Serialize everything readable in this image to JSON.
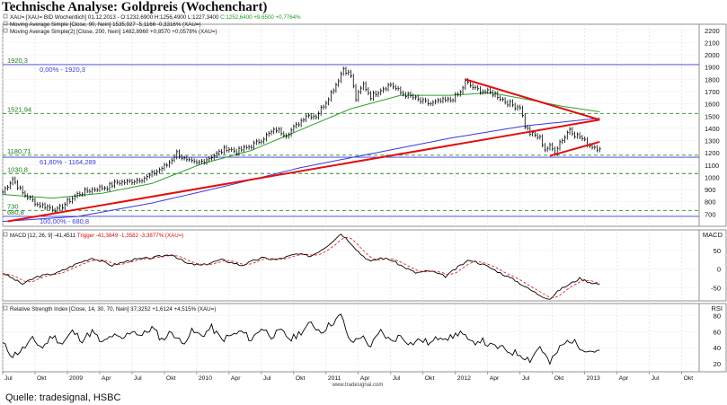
{
  "page": {
    "title": "Technische Analyse: Goldpreis (Wochenchart)",
    "source": "Quelle: tradesignal, HSBC",
    "watermark": "www.tradesignal.com"
  },
  "colors": {
    "price": "#000000",
    "sma90": "#2ea02e",
    "sma200": "#3a3ad8",
    "trend": "#e01010",
    "level_line_blue": "#3a3ad8",
    "level_line_green": "#2a8a2a",
    "signal": "#e01010",
    "legend_green": "#1f9a1f",
    "legend_red": "#d01010"
  },
  "chart_data": [
    {
      "type": "line",
      "panel": "price",
      "ylim": [
        600,
        2250
      ],
      "ticks": [
        "2200",
        "2100",
        "2000",
        "1900",
        "1800",
        "1700",
        "1600",
        "1500",
        "1400",
        "1300",
        "1200",
        "1100",
        "1000",
        "900",
        "800",
        "700"
      ],
      "legend": [
        {
          "label": "XAU= [XAU= BID Wochentlich] 01.12.2013 - O:1232,6900 H:1256,4900 L:1227,3400",
          "extra": "C:1252,6400 +9,6500 +0,7764%",
          "extra_color": "legend_green"
        },
        {
          "label": "Moving Average Simple [Close, 90, Nein] 1535,927 -5,1166 -0,3316% (XAU=)",
          "extra": "",
          "extra_color": ""
        },
        {
          "label": "Moving Average Simple(2) [Close, 200, Nein] 1482,8960 +0,8570 +0,0578% (XAU=)",
          "extra": "",
          "extra_color": ""
        }
      ],
      "levels": [
        {
          "value": 1920.3,
          "label": "1920,3",
          "fib": "0,00% - 1920,3",
          "color": "level_line_blue",
          "dash": false
        },
        {
          "value": 1521.94,
          "label": "1521,94",
          "fib": "",
          "color": "level_line_green",
          "dash": true
        },
        {
          "value": 1180.71,
          "label": "1180,71",
          "fib": "",
          "color": "level_line_green",
          "dash": true
        },
        {
          "value": 1164.289,
          "label": "",
          "fib": "61,80% - 1164,289",
          "color": "level_line_blue",
          "dash": false
        },
        {
          "value": 1030.8,
          "label": "1030,8",
          "fib": "",
          "color": "level_line_green",
          "dash": true
        },
        {
          "value": 730,
          "label": "730",
          "fib": "",
          "color": "level_line_green",
          "dash": true
        },
        {
          "value": 680.8,
          "label": "680,8",
          "fib": "100,00% - 680,8",
          "color": "level_line_blue",
          "dash": false
        }
      ],
      "price_anchors": [
        [
          0,
          880
        ],
        [
          4,
          990
        ],
        [
          8,
          870
        ],
        [
          14,
          780
        ],
        [
          18,
          760
        ],
        [
          22,
          730
        ],
        [
          26,
          800
        ],
        [
          30,
          860
        ],
        [
          34,
          890
        ],
        [
          38,
          910
        ],
        [
          42,
          920
        ],
        [
          46,
          960
        ],
        [
          50,
          960
        ],
        [
          54,
          980
        ],
        [
          58,
          1000
        ],
        [
          62,
          1050
        ],
        [
          66,
          1100
        ],
        [
          70,
          1200
        ],
        [
          74,
          1130
        ],
        [
          78,
          1110
        ],
        [
          82,
          1150
        ],
        [
          86,
          1190
        ],
        [
          90,
          1240
        ],
        [
          94,
          1210
        ],
        [
          98,
          1240
        ],
        [
          102,
          1280
        ],
        [
          106,
          1340
        ],
        [
          110,
          1390
        ],
        [
          114,
          1350
        ],
        [
          118,
          1420
        ],
        [
          122,
          1510
        ],
        [
          126,
          1500
        ],
        [
          130,
          1620
        ],
        [
          134,
          1760
        ],
        [
          137,
          1890
        ],
        [
          140,
          1830
        ],
        [
          142,
          1640
        ],
        [
          145,
          1760
        ],
        [
          148,
          1660
        ],
        [
          152,
          1720
        ],
        [
          156,
          1760
        ],
        [
          160,
          1690
        ],
        [
          164,
          1660
        ],
        [
          168,
          1620
        ],
        [
          172,
          1600
        ],
        [
          176,
          1620
        ],
        [
          180,
          1630
        ],
        [
          184,
          1690
        ],
        [
          186,
          1780
        ],
        [
          190,
          1720
        ],
        [
          194,
          1700
        ],
        [
          198,
          1680
        ],
        [
          202,
          1620
        ],
        [
          206,
          1580
        ],
        [
          208,
          1580
        ],
        [
          210,
          1420
        ],
        [
          212,
          1360
        ],
        [
          216,
          1320
        ],
        [
          218,
          1230
        ],
        [
          220,
          1250
        ],
        [
          222,
          1210
        ],
        [
          224,
          1290
        ],
        [
          226,
          1330
        ],
        [
          228,
          1400
        ],
        [
          230,
          1350
        ],
        [
          232,
          1330
        ],
        [
          236,
          1260
        ],
        [
          238,
          1250
        ],
        [
          240,
          1232
        ]
      ],
      "sma90_anchors": [
        [
          0,
          860
        ],
        [
          20,
          830
        ],
        [
          40,
          870
        ],
        [
          60,
          950
        ],
        [
          80,
          1110
        ],
        [
          100,
          1220
        ],
        [
          120,
          1390
        ],
        [
          140,
          1560
        ],
        [
          160,
          1670
        ],
        [
          180,
          1670
        ],
        [
          196,
          1690
        ],
        [
          210,
          1640
        ],
        [
          225,
          1580
        ],
        [
          240,
          1535
        ]
      ],
      "sma200_anchors": [
        [
          0,
          640
        ],
        [
          30,
          680
        ],
        [
          60,
          790
        ],
        [
          90,
          930
        ],
        [
          120,
          1080
        ],
        [
          150,
          1200
        ],
        [
          180,
          1320
        ],
        [
          210,
          1420
        ],
        [
          240,
          1483
        ]
      ],
      "trendlines": [
        {
          "from": [
            2,
            640
          ],
          "to": [
            240,
            1470
          ]
        },
        {
          "from": [
            186,
            1800
          ],
          "to": [
            240,
            1470
          ]
        },
        {
          "from": [
            220,
            1175
          ],
          "to": [
            240,
            1290
          ]
        }
      ]
    },
    {
      "type": "line",
      "panel": "macd",
      "ylim": [
        -85,
        105
      ],
      "ticks": [
        "50",
        "0",
        "-50"
      ],
      "label": "MACD",
      "legend": [
        {
          "label": "MACD [12, 26, 9] -41,4511",
          "extra": "Trigger -41,3849 -1,3582 -3,3877% (XAU=)",
          "extra_color": "legend_red"
        }
      ],
      "macd_anchors": [
        [
          0,
          -10
        ],
        [
          8,
          -40
        ],
        [
          14,
          -20
        ],
        [
          22,
          -10
        ],
        [
          30,
          15
        ],
        [
          36,
          30
        ],
        [
          44,
          10
        ],
        [
          52,
          25
        ],
        [
          60,
          30
        ],
        [
          68,
          40
        ],
        [
          74,
          15
        ],
        [
          80,
          10
        ],
        [
          88,
          25
        ],
        [
          96,
          10
        ],
        [
          104,
          30
        ],
        [
          110,
          25
        ],
        [
          118,
          40
        ],
        [
          124,
          35
        ],
        [
          130,
          60
        ],
        [
          136,
          95
        ],
        [
          140,
          70
        ],
        [
          144,
          40
        ],
        [
          148,
          20
        ],
        [
          152,
          30
        ],
        [
          156,
          25
        ],
        [
          160,
          10
        ],
        [
          166,
          -10
        ],
        [
          172,
          -5
        ],
        [
          178,
          -20
        ],
        [
          184,
          10
        ],
        [
          188,
          25
        ],
        [
          194,
          10
        ],
        [
          200,
          -10
        ],
        [
          206,
          -30
        ],
        [
          212,
          -55
        ],
        [
          216,
          -70
        ],
        [
          220,
          -80
        ],
        [
          224,
          -55
        ],
        [
          228,
          -40
        ],
        [
          232,
          -25
        ],
        [
          236,
          -35
        ],
        [
          240,
          -41
        ]
      ]
    },
    {
      "type": "line",
      "panel": "rsi",
      "ylim": [
        10,
        95
      ],
      "ticks": [
        "80",
        "60",
        "40",
        "20"
      ],
      "label": "RSI",
      "legend": [
        {
          "label": "Relative Strength Index [Close, 14, 30, 70, Nein] 37,3252 +1,6124 +4,515% (XAU=)",
          "extra": "",
          "extra_color": ""
        }
      ],
      "rsi_anchors": [
        [
          0,
          45
        ],
        [
          4,
          30
        ],
        [
          8,
          38
        ],
        [
          12,
          50
        ],
        [
          16,
          40
        ],
        [
          20,
          55
        ],
        [
          24,
          45
        ],
        [
          28,
          60
        ],
        [
          32,
          50
        ],
        [
          36,
          60
        ],
        [
          40,
          45
        ],
        [
          44,
          55
        ],
        [
          48,
          50
        ],
        [
          52,
          62
        ],
        [
          56,
          55
        ],
        [
          60,
          65
        ],
        [
          64,
          50
        ],
        [
          68,
          60
        ],
        [
          72,
          45
        ],
        [
          76,
          60
        ],
        [
          80,
          55
        ],
        [
          84,
          65
        ],
        [
          88,
          50
        ],
        [
          92,
          55
        ],
        [
          96,
          60
        ],
        [
          100,
          50
        ],
        [
          104,
          65
        ],
        [
          108,
          55
        ],
        [
          112,
          60
        ],
        [
          116,
          50
        ],
        [
          120,
          60
        ],
        [
          124,
          70
        ],
        [
          128,
          60
        ],
        [
          132,
          70
        ],
        [
          136,
          80
        ],
        [
          140,
          45
        ],
        [
          144,
          55
        ],
        [
          148,
          42
        ],
        [
          152,
          60
        ],
        [
          156,
          48
        ],
        [
          160,
          55
        ],
        [
          164,
          45
        ],
        [
          168,
          50
        ],
        [
          172,
          45
        ],
        [
          176,
          55
        ],
        [
          180,
          52
        ],
        [
          184,
          60
        ],
        [
          188,
          45
        ],
        [
          192,
          50
        ],
        [
          196,
          42
        ],
        [
          200,
          40
        ],
        [
          204,
          35
        ],
        [
          208,
          32
        ],
        [
          212,
          25
        ],
        [
          216,
          42
        ],
        [
          220,
          20
        ],
        [
          224,
          40
        ],
        [
          228,
          50
        ],
        [
          232,
          42
        ],
        [
          236,
          36
        ],
        [
          240,
          37
        ]
      ]
    }
  ],
  "xaxis": {
    "labels": [
      {
        "t": 0,
        "text": "Jul"
      },
      {
        "t": 13,
        "text": "Okt"
      },
      {
        "t": 26,
        "text": "2009"
      },
      {
        "t": 39,
        "text": "Apr"
      },
      {
        "t": 52,
        "text": "Jul"
      },
      {
        "t": 65,
        "text": "Okt"
      },
      {
        "t": 78,
        "text": "2010"
      },
      {
        "t": 91,
        "text": "Apr"
      },
      {
        "t": 104,
        "text": "Jul"
      },
      {
        "t": 117,
        "text": "Okt"
      },
      {
        "t": 130,
        "text": "2011"
      },
      {
        "t": 143,
        "text": "Apr"
      },
      {
        "t": 156,
        "text": "Jul"
      },
      {
        "t": 169,
        "text": "Okt"
      },
      {
        "t": 182,
        "text": "2012"
      },
      {
        "t": 195,
        "text": "Apr"
      },
      {
        "t": 208,
        "text": "Jul"
      },
      {
        "t": 221,
        "text": "Okt"
      },
      {
        "t": 234,
        "text": "2013"
      },
      {
        "t": 247,
        "text": "Apr"
      },
      {
        "t": 260,
        "text": "Jul"
      },
      {
        "t": 273,
        "text": "Okt"
      }
    ],
    "tmax": 280
  }
}
